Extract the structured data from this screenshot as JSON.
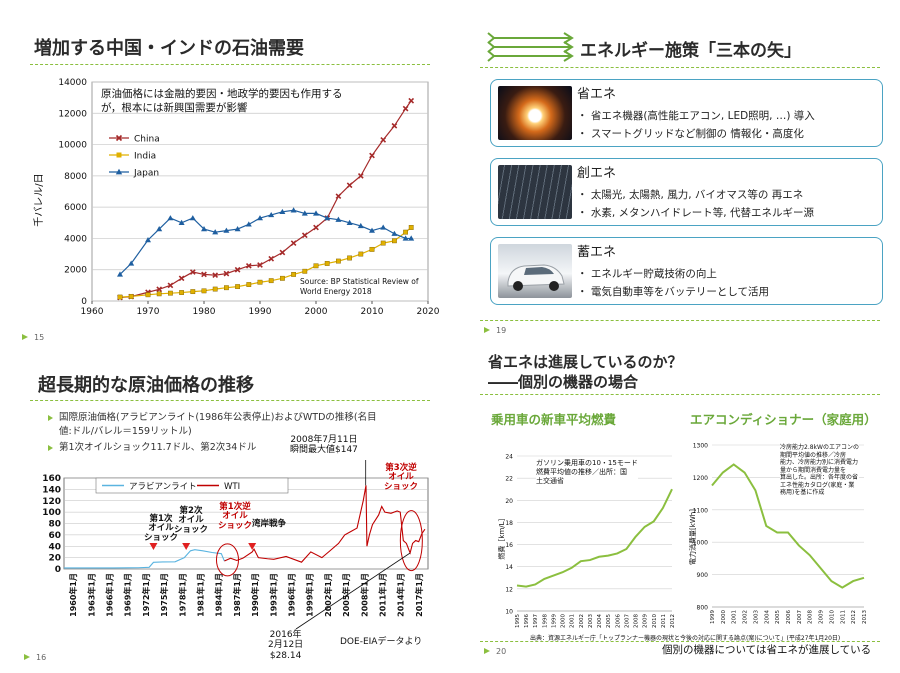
{
  "slide15": {
    "title": "増加する中国・インドの石油需要",
    "page": "15",
    "note_line1": "原油価格には金融的要因・地政学的要因も作用する",
    "note_line2": "が，根本には新興国需要が影響",
    "source_line1": "Source: BP Statistical  Review of",
    "source_line2": "World Energy 2018",
    "ylabel": "千バレル/日"
  },
  "slide16": {
    "title": "超長期的な原油価格の推移",
    "page": "16",
    "bullets": [
      "国際原油価格(アラビアンライト(1986年公表停止)およびWTDの推移(名目",
      "値:ドル/バレル＝159リットル)",
      "第1次オイルショック11.7ドル、第2次34ドル"
    ],
    "annotations": {
      "peak_line1": "2008年7月11日",
      "peak_line2": "瞬間最大値$147",
      "oil1_line1": "第1次",
      "oil1_line2": "オイル",
      "oil1_line3": "ショック",
      "oil2_line1": "第2次",
      "oil2_line2": "オイル",
      "oil2_line3": "ショック",
      "rev1_line1": "第1次逆",
      "rev1_line2": "オイル",
      "rev1_line3": "ショック",
      "gulf": "湾岸戦争",
      "rev3_line1": "第3次逆",
      "rev3_line2": "オイル",
      "rev3_line3": "ショック",
      "low_line1": "2016年",
      "low_line2": "2月12日",
      "low_line3": "$28.14",
      "source": "DOE-EIAデータより"
    }
  },
  "slide19": {
    "title": "エネルギー施策「三本の矢」",
    "page": "19",
    "cards": [
      {
        "title": "省エネ",
        "bullets": [
          "・ 省エネ機器(高性能エアコン, LED照明, …) 導入",
          "・ スマートグリッドなど制御の 情報化・高度化"
        ]
      },
      {
        "title": "創エネ",
        "bullets": [
          "・ 太陽光, 太陽熱, 風力, バイオマス等の 再エネ",
          "・ 水素, メタンハイドレート等, 代替エネルギー源"
        ]
      },
      {
        "title": "蓄エネ",
        "bullets": [
          "・ エネルギー貯蔵技術の向上",
          "・ 電気自動車等をバッテリーとして活用"
        ]
      }
    ]
  },
  "slide20": {
    "title_line1": "省エネは進展しているのか？",
    "title_line2": "――個別の機器の場合",
    "page": "20",
    "left_subtitle": "乗用車の新車平均燃費",
    "right_subtitle": "エアコンディショナー（家庭用）",
    "left_box": [
      "ガソリン乗用車の10・15モード",
      "燃費平均値の推移／出所：国",
      "土交通省"
    ],
    "right_box": [
      "冷房能力2.8kWのエアコンの",
      "期間平均値の推移／冷房",
      "能力、冷房能力別に消費電力",
      "量から期間消費電力量を",
      "算出した。出所：各年度の省",
      "エネ性能カタログ(家庭・業",
      "務用)を基に作成"
    ],
    "left_ylabel": "燃費［km/L］",
    "right_ylabel": "電力消費量[kWh]",
    "source": "出典：資源エネルギー庁「トップランナー機器の現状と今後の対応に関する論点(案)について」(平成27年1月20日)",
    "conclusion": "個別の機器については省エネが進展している"
  },
  "chart_data": [
    {
      "type": "line",
      "title": "",
      "xlabel": "",
      "ylabel": "千バレル/日",
      "xlim": [
        1960,
        2020
      ],
      "ylim": [
        0,
        14000
      ],
      "xticks": [
        1960,
        1970,
        1980,
        1990,
        2000,
        2010,
        2020
      ],
      "yticks": [
        0,
        2000,
        4000,
        6000,
        8000,
        10000,
        12000,
        14000
      ],
      "legend": "top-left",
      "series": [
        {
          "name": "China",
          "color": "#a52a2a",
          "marker": "x",
          "x": [
            1965,
            1967,
            1970,
            1972,
            1974,
            1976,
            1978,
            1980,
            1982,
            1984,
            1986,
            1988,
            1990,
            1992,
            1994,
            1996,
            1998,
            2000,
            2002,
            2004,
            2006,
            2008,
            2010,
            2012,
            2014,
            2016,
            2017
          ],
          "y": [
            220,
            280,
            560,
            750,
            1000,
            1450,
            1850,
            1700,
            1650,
            1750,
            2000,
            2250,
            2300,
            2700,
            3100,
            3700,
            4200,
            4700,
            5300,
            6700,
            7400,
            8000,
            9300,
            10300,
            11200,
            12300,
            12800
          ]
        },
        {
          "name": "India",
          "color": "#e0b000",
          "marker": "square",
          "x": [
            1965,
            1967,
            1970,
            1972,
            1974,
            1976,
            1978,
            1980,
            1982,
            1984,
            1986,
            1988,
            1990,
            1992,
            1994,
            1996,
            1998,
            2000,
            2002,
            2004,
            2006,
            2008,
            2010,
            2012,
            2014,
            2016,
            2017
          ],
          "y": [
            250,
            290,
            400,
            460,
            500,
            540,
            600,
            650,
            760,
            850,
            920,
            1050,
            1200,
            1300,
            1450,
            1700,
            1900,
            2250,
            2400,
            2550,
            2750,
            3000,
            3300,
            3700,
            3850,
            4400,
            4700
          ]
        },
        {
          "name": "Japan",
          "color": "#1f5fa0",
          "marker": "triangle",
          "x": [
            1965,
            1967,
            1970,
            1972,
            1974,
            1976,
            1978,
            1980,
            1982,
            1984,
            1986,
            1988,
            1990,
            1992,
            1994,
            1996,
            1998,
            2000,
            2002,
            2004,
            2006,
            2008,
            2010,
            2012,
            2014,
            2016,
            2017
          ],
          "y": [
            1700,
            2400,
            3900,
            4600,
            5300,
            5000,
            5300,
            4600,
            4400,
            4500,
            4600,
            4900,
            5300,
            5500,
            5700,
            5800,
            5600,
            5600,
            5300,
            5200,
            5000,
            4800,
            4500,
            4700,
            4300,
            4000,
            4000
          ]
        }
      ]
    },
    {
      "type": "line",
      "title": "",
      "xlabel": "",
      "ylabel": "",
      "ylim": [
        0,
        160
      ],
      "yticks": [
        0,
        20,
        40,
        60,
        80,
        100,
        120,
        140,
        160
      ],
      "xticks": [
        "1960年1月",
        "1963年1月",
        "1966年1月",
        "1969年1月",
        "1972年1月",
        "1975年1月",
        "1978年1月",
        "1981年1月",
        "1984年1月",
        "1987年1月",
        "1990年1月",
        "1993年1月",
        "1996年1月",
        "1999年1月",
        "2002年1月",
        "2005年1月",
        "2008年1月",
        "2011年1月",
        "2014年1月",
        "2017年1月"
      ],
      "legend": "top",
      "series": [
        {
          "name": "アラビアンライト",
          "color": "#5ab4e0",
          "x": [
            1960,
            1964,
            1968,
            1972,
            1973.8,
            1974.5,
            1976,
            1978,
            1979.5,
            1980.5,
            1981.2,
            1982.5,
            1984,
            1985.5,
            1986
          ],
          "y": [
            1.8,
            1.8,
            1.8,
            2.2,
            3.0,
            11.7,
            12.4,
            12.7,
            20,
            32,
            34,
            32,
            29,
            27,
            14
          ]
        },
        {
          "name": "WTI",
          "color": "#c00000",
          "x": [
            1986,
            1987,
            1988,
            1989,
            1990.5,
            1990.8,
            1991.5,
            1993,
            1994,
            1996,
            1998.5,
            2000,
            2001.8,
            2003,
            2004.5,
            2005.5,
            2006.5,
            2007.5,
            2008.5,
            2008.95,
            2009.1,
            2009.5,
            2010,
            2011,
            2011.5,
            2012,
            2013,
            2014,
            2014.5,
            2015,
            2015.5,
            2016.1,
            2016.5,
            2017,
            2017.5,
            2018,
            2018.5
          ],
          "y": [
            14,
            19,
            15,
            19,
            30,
            35,
            20,
            18,
            17,
            22,
            12,
            30,
            20,
            31,
            45,
            60,
            66,
            72,
            120,
            147,
            40,
            60,
            78,
            95,
            110,
            100,
            98,
            102,
            100,
            50,
            45,
            28.14,
            45,
            50,
            48,
            62,
            70
          ]
        }
      ]
    },
    {
      "type": "line",
      "title": "乗用車の新車平均燃費",
      "xlabel": "",
      "ylabel": "燃費［km/L］",
      "ylim": [
        10,
        24
      ],
      "yticks": [
        10,
        12,
        14,
        16,
        18,
        20,
        22,
        24
      ],
      "categories": [
        "1995",
        "1996",
        "1997",
        "1998",
        "1999",
        "2000",
        "2001",
        "2002",
        "2003",
        "2004",
        "2005",
        "2006",
        "2007",
        "2008",
        "2009",
        "2010",
        "2011",
        "2012"
      ],
      "series": [
        {
          "name": "",
          "color": "#8bbf3f",
          "values": [
            12.3,
            12.2,
            12.4,
            12.9,
            13.2,
            13.5,
            13.9,
            14.5,
            14.6,
            14.9,
            15.0,
            15.2,
            15.6,
            16.7,
            17.6,
            18.1,
            19.3,
            21.0
          ]
        }
      ]
    },
    {
      "type": "line",
      "title": "エアコンディショナー（家庭用）",
      "xlabel": "",
      "ylabel": "電力消費量[kWh]",
      "ylim": [
        800,
        1300
      ],
      "yticks": [
        800,
        900,
        1000,
        1100,
        1200,
        1300
      ],
      "categories": [
        "1999",
        "2000",
        "2001",
        "2002",
        "2003",
        "2004",
        "2005",
        "2006",
        "2007",
        "2008",
        "2009",
        "2010",
        "2011",
        "2012",
        "2013"
      ],
      "series": [
        {
          "name": "",
          "color": "#8bbf3f",
          "values": [
            1175,
            1215,
            1240,
            1215,
            1160,
            1050,
            1030,
            1030,
            990,
            960,
            920,
            880,
            860,
            880,
            890
          ]
        }
      ]
    }
  ]
}
